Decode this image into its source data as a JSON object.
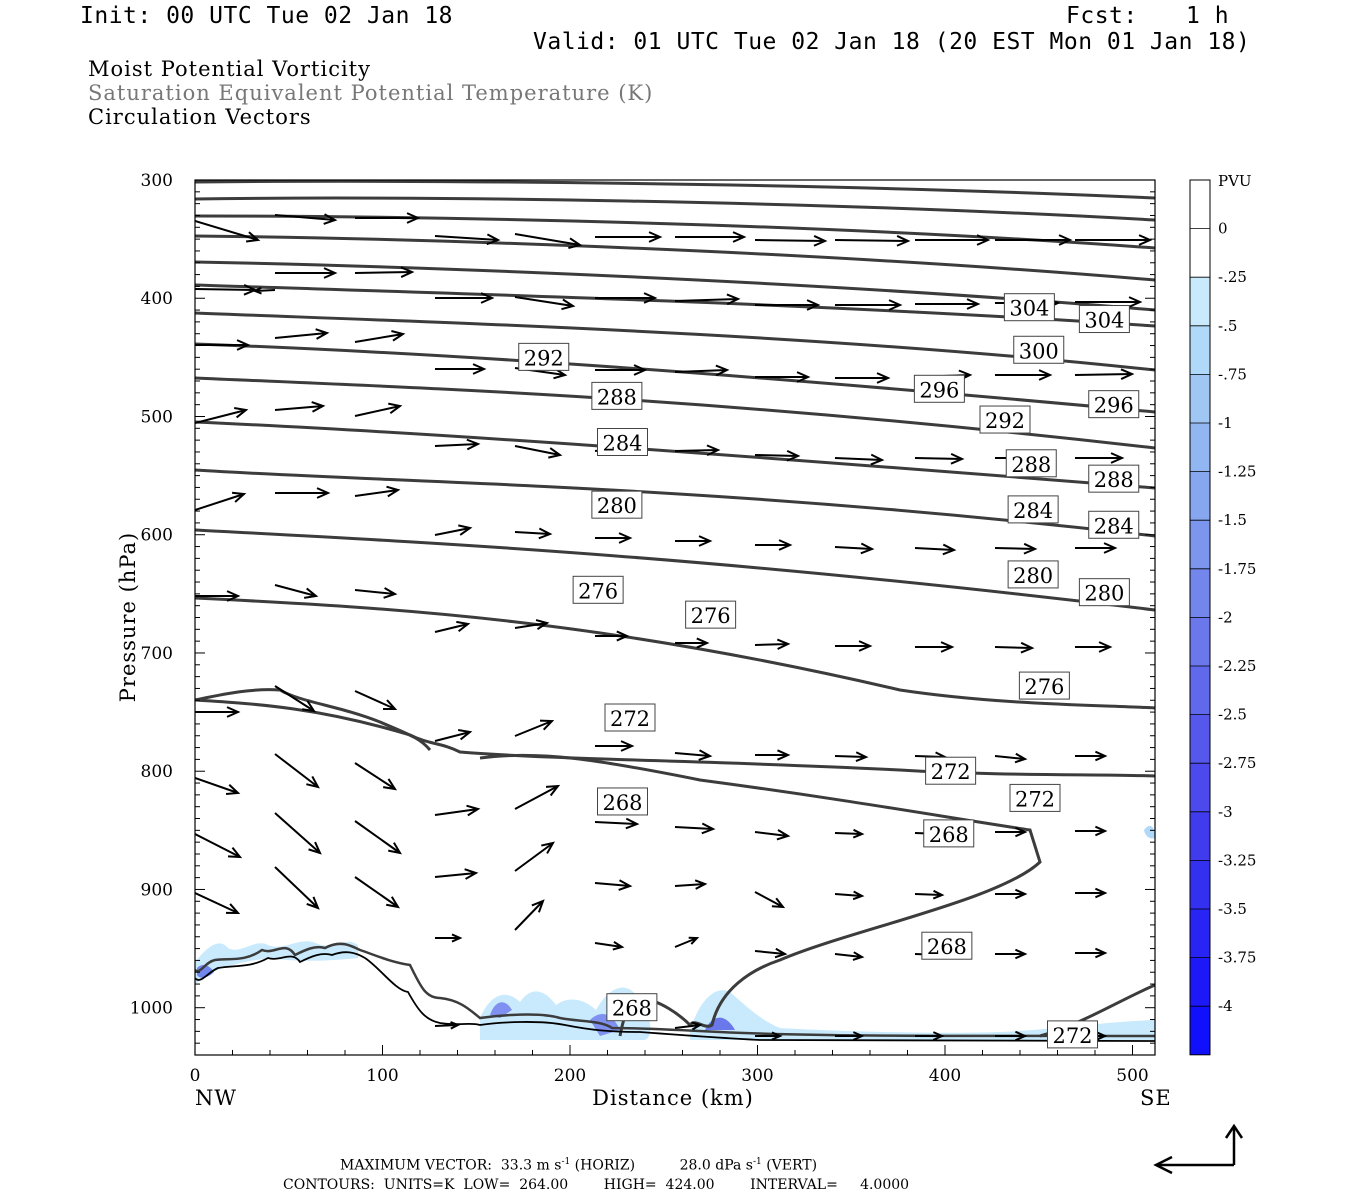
{
  "header": {
    "init": "Init: 00 UTC Tue 02 Jan 18",
    "fcst_label": "Fcst:",
    "fcst_value": "1 h",
    "valid": "Valid: 01 UTC Tue 02 Jan 18 (20 EST Mon 01 Jan 18)"
  },
  "titles": {
    "line1": "Moist Potential Vorticity",
    "line2": "Saturation Equivalent Potential Temperature (K)",
    "line3": "Circulation Vectors"
  },
  "colors": {
    "contour": "#3c3c3c",
    "gray_title": "#777777"
  },
  "chart_data": {
    "type": "cross-section contour",
    "xlabel": "Distance (km)",
    "ylabel": "Pressure (hPa)",
    "xlim": [
      0,
      512
    ],
    "ylim": [
      1040,
      300
    ],
    "x_ticks": [
      0,
      100,
      200,
      300,
      400,
      500
    ],
    "y_ticks": [
      300,
      400,
      500,
      600,
      700,
      800,
      900,
      1000
    ],
    "left_label": "NW",
    "right_label": "SE",
    "colorbar": {
      "title": "PVU",
      "tick_labels": [
        "0",
        "-.25",
        "-.5",
        "-.75",
        "-1",
        "-1.25",
        "-1.5",
        "-1.75",
        "-2",
        "-2.25",
        "-2.5",
        "-2.75",
        "-3",
        "-3.25",
        "-3.5",
        "-3.75",
        "-4"
      ],
      "colors": [
        "#ffffff",
        "#ffffff",
        "#c8eafc",
        "#b0d8f8",
        "#a0c6f4",
        "#92b6f2",
        "#86a6f0",
        "#7c96ee",
        "#7286ec",
        "#6a78ec",
        "#6068ec",
        "#5658ec",
        "#4c4aec",
        "#403cee",
        "#3430f0",
        "#2824f4",
        "#1c18f8",
        "#1010fc"
      ]
    },
    "contour_labels": [
      {
        "text": "304",
        "x": 445,
        "p": 408
      },
      {
        "text": "304",
        "x": 485,
        "p": 418
      },
      {
        "text": "300",
        "x": 450,
        "p": 444
      },
      {
        "text": "296",
        "x": 397,
        "p": 477
      },
      {
        "text": "296",
        "x": 490,
        "p": 490
      },
      {
        "text": "292",
        "x": 186,
        "p": 450
      },
      {
        "text": "292",
        "x": 432,
        "p": 503
      },
      {
        "text": "288",
        "x": 225,
        "p": 483
      },
      {
        "text": "288",
        "x": 446,
        "p": 540
      },
      {
        "text": "288",
        "x": 490,
        "p": 553
      },
      {
        "text": "284",
        "x": 228,
        "p": 522
      },
      {
        "text": "284",
        "x": 447,
        "p": 579
      },
      {
        "text": "284",
        "x": 490,
        "p": 592
      },
      {
        "text": "280",
        "x": 225,
        "p": 575
      },
      {
        "text": "280",
        "x": 447,
        "p": 634
      },
      {
        "text": "280",
        "x": 485,
        "p": 649
      },
      {
        "text": "276",
        "x": 215,
        "p": 647
      },
      {
        "text": "276",
        "x": 275,
        "p": 668
      },
      {
        "text": "276",
        "x": 453,
        "p": 728
      },
      {
        "text": "272",
        "x": 232,
        "p": 755
      },
      {
        "text": "272",
        "x": 403,
        "p": 800
      },
      {
        "text": "272",
        "x": 448,
        "p": 823
      },
      {
        "text": "272",
        "x": 468,
        "p": 1023
      },
      {
        "text": "268",
        "x": 228,
        "p": 826
      },
      {
        "text": "268",
        "x": 402,
        "p": 853
      },
      {
        "text": "268",
        "x": 401,
        "p": 948
      },
      {
        "text": "268",
        "x": 233,
        "p": 1000
      }
    ]
  },
  "footer": {
    "max_vector_label": "MAXIMUM VECTOR:",
    "max_vector_horiz": "33.3 m s",
    "horiz_suffix": "(HORIZ)",
    "max_vector_vert": "28.0 dPa s",
    "vert_suffix": "(VERT)",
    "exponent": "-1",
    "contours": "CONTOURS:  UNITS=K  LOW=  264.00        HIGH=  424.00        INTERVAL=     4.0000"
  }
}
